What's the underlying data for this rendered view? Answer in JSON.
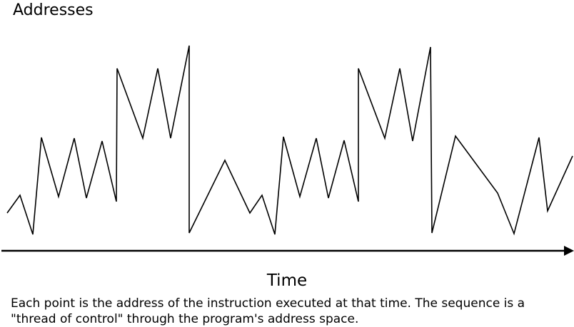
{
  "diagram": {
    "y_axis_label": "Addresses",
    "x_axis_label": "Time",
    "caption_line_1": "Each point is the address of the instruction executed at that time. The sequence is a",
    "caption_line_2": "\"thread of control\" through the program's address space.",
    "line_color": "#000000"
  }
}
